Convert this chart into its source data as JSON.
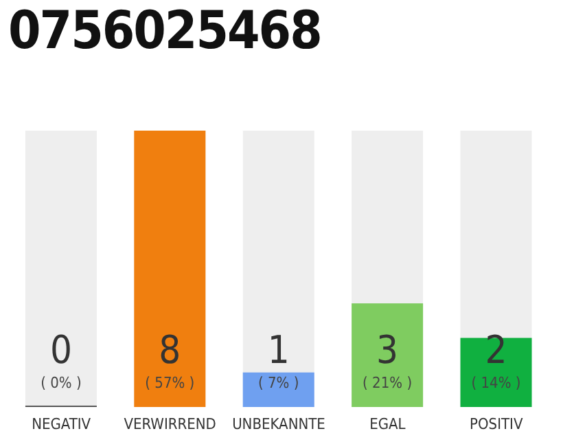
{
  "chart_data": {
    "type": "bar",
    "title": "0756025468",
    "categories": [
      "NEGATIV",
      "VERWIRREND",
      "UNBEKANNTE",
      "EGAL",
      "POSITIV"
    ],
    "values": [
      0,
      8,
      1,
      3,
      2
    ],
    "colors": [
      "#555555",
      "#f07f0f",
      "#6fa0f0",
      "#7fcc60",
      "#10b040"
    ],
    "data_labels": true,
    "annotations": [
      "( 0% )",
      "( 57% )",
      "( 7% )",
      "( 21% )",
      "( 14% )"
    ]
  }
}
